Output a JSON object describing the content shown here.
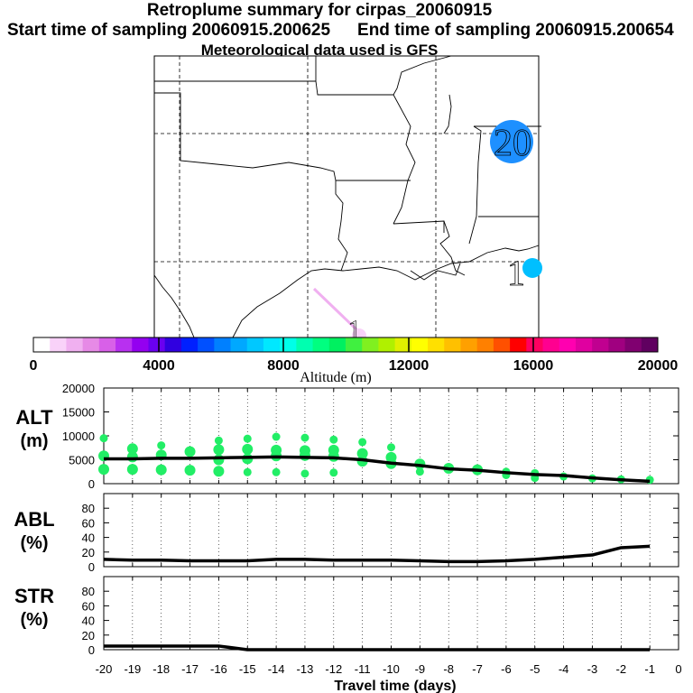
{
  "header": {
    "title": "Retroplume summary for cirpas_20060915",
    "start": "Start time of sampling 20060915.200625",
    "end": "End time of sampling 20060915.200654",
    "met": "Meteorological data used is GFS"
  },
  "colorbar": {
    "ticks": [
      "0",
      "4000",
      "8000",
      "12000",
      "16000",
      "20000"
    ],
    "label": "Altitude (m)",
    "colors": [
      "#ffffff",
      "#f9d2f9",
      "#f0b0f0",
      "#e68ae6",
      "#d860e8",
      "#b830f0",
      "#9400f0",
      "#6a00f0",
      "#3000e0",
      "#0020ff",
      "#0050ff",
      "#0080ff",
      "#00a8ff",
      "#00c8ff",
      "#00e8ff",
      "#00ffe8",
      "#00ffb0",
      "#00ff80",
      "#00f060",
      "#40f040",
      "#80f020",
      "#b0f000",
      "#e0f000",
      "#ffff00",
      "#ffe000",
      "#ffc000",
      "#ffa000",
      "#ff8000",
      "#ff5000",
      "#ff0000",
      "#ff0060",
      "#ff0090",
      "#ff00b0",
      "#e000a0",
      "#c00090",
      "#a00080",
      "#800070",
      "#600060"
    ]
  },
  "map": {
    "labels": [
      {
        "text": "20",
        "color": "#1e90ff"
      },
      {
        "text": "1",
        "color": "#00bfff"
      },
      {
        "text": "1",
        "color": "#f0b0f0"
      }
    ]
  },
  "chart_data": [
    {
      "type": "line",
      "panel": "ALT",
      "ylabel": "ALT\n(m)",
      "ylim": [
        0,
        20000
      ],
      "yticks": [
        "20000",
        "15000",
        "10000",
        "5000",
        "0"
      ],
      "x": [
        -20,
        -19,
        -18,
        -17,
        -16,
        -15,
        -14,
        -13,
        -12,
        -11,
        -10,
        -9,
        -8,
        -7,
        -6,
        -5,
        -4,
        -3,
        -2,
        -1
      ],
      "series": [
        {
          "name": "median altitude",
          "values": [
            5200,
            5200,
            5300,
            5300,
            5400,
            5500,
            5600,
            5500,
            5400,
            5000,
            4300,
            3800,
            3100,
            2800,
            2300,
            1900,
            1700,
            1200,
            800,
            500
          ]
        }
      ],
      "scatter": [
        {
          "x": -20,
          "y": 9500
        },
        {
          "x": -20,
          "y": 5800
        },
        {
          "x": -20,
          "y": 3000
        },
        {
          "x": -19,
          "y": 7300
        },
        {
          "x": -19,
          "y": 5600
        },
        {
          "x": -19,
          "y": 3000
        },
        {
          "x": -18,
          "y": 8000
        },
        {
          "x": -18,
          "y": 6000
        },
        {
          "x": -18,
          "y": 2900
        },
        {
          "x": -17,
          "y": 6700
        },
        {
          "x": -17,
          "y": 2800
        },
        {
          "x": -16,
          "y": 9000
        },
        {
          "x": -16,
          "y": 7100
        },
        {
          "x": -16,
          "y": 5000
        },
        {
          "x": -16,
          "y": 2600
        },
        {
          "x": -15,
          "y": 9400
        },
        {
          "x": -15,
          "y": 7200
        },
        {
          "x": -15,
          "y": 5200
        },
        {
          "x": -15,
          "y": 2400
        },
        {
          "x": -14,
          "y": 9800
        },
        {
          "x": -14,
          "y": 7000
        },
        {
          "x": -14,
          "y": 5800
        },
        {
          "x": -14,
          "y": 2400
        },
        {
          "x": -13,
          "y": 9600
        },
        {
          "x": -13,
          "y": 6900
        },
        {
          "x": -13,
          "y": 5900
        },
        {
          "x": -13,
          "y": 2100
        },
        {
          "x": -12,
          "y": 9200
        },
        {
          "x": -12,
          "y": 7000
        },
        {
          "x": -12,
          "y": 5700
        },
        {
          "x": -12,
          "y": 2300
        },
        {
          "x": -11,
          "y": 8700
        },
        {
          "x": -11,
          "y": 6300
        },
        {
          "x": -11,
          "y": 4700
        },
        {
          "x": -10,
          "y": 7600
        },
        {
          "x": -10,
          "y": 5500
        },
        {
          "x": -10,
          "y": 4200
        },
        {
          "x": -9,
          "y": 4100
        },
        {
          "x": -9,
          "y": 2500
        },
        {
          "x": -8,
          "y": 3200
        },
        {
          "x": -7,
          "y": 2900
        },
        {
          "x": -6,
          "y": 2500
        },
        {
          "x": -6,
          "y": 1800
        },
        {
          "x": -5,
          "y": 2200
        },
        {
          "x": -5,
          "y": 1200
        },
        {
          "x": -4,
          "y": 1500
        },
        {
          "x": -3,
          "y": 1100
        },
        {
          "x": -2,
          "y": 900
        },
        {
          "x": -1,
          "y": 800
        }
      ]
    },
    {
      "type": "line",
      "panel": "ABL",
      "ylabel": "ABL\n(%)",
      "ylim": [
        0,
        100
      ],
      "yticks": [
        "80",
        "60",
        "40",
        "20",
        "0"
      ],
      "x": [
        -20,
        -19,
        -18,
        -17,
        -16,
        -15,
        -14,
        -13,
        -12,
        -11,
        -10,
        -9,
        -8,
        -7,
        -6,
        -5,
        -4,
        -3,
        -2,
        -1
      ],
      "series": [
        {
          "name": "ABL fraction",
          "values": [
            10,
            9,
            9,
            8,
            8,
            8,
            10,
            10,
            9,
            9,
            9,
            8,
            7,
            7,
            8,
            10,
            13,
            16,
            26,
            28
          ]
        }
      ]
    },
    {
      "type": "line",
      "panel": "STR",
      "ylabel": "STR\n(%)",
      "ylim": [
        0,
        100
      ],
      "yticks": [
        "80",
        "60",
        "40",
        "20",
        "0"
      ],
      "x": [
        -20,
        -19,
        -18,
        -17,
        -16,
        -15,
        -14,
        -13,
        -12,
        -11,
        -10,
        -9,
        -8,
        -7,
        -6,
        -5,
        -4,
        -3,
        -2,
        -1
      ],
      "series": [
        {
          "name": "stratospheric fraction",
          "values": [
            5,
            5,
            5,
            5,
            5,
            0,
            0,
            0,
            0,
            0,
            0,
            0,
            0,
            0,
            0,
            0,
            0,
            0,
            0,
            0
          ]
        }
      ],
      "xlabel": "Travel time (days)",
      "xticks": [
        "-20",
        "-19",
        "-18",
        "-17",
        "-16",
        "-15",
        "-14",
        "-13",
        "-12",
        "-11",
        "-10",
        "-9",
        "-8",
        "-7",
        "-6",
        "-5",
        "-4",
        "-3",
        "-2",
        "-1",
        "0"
      ]
    }
  ]
}
